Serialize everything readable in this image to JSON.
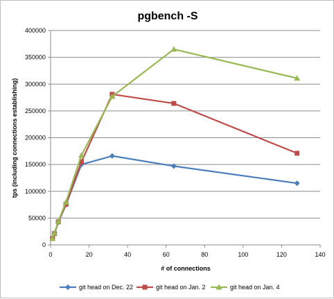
{
  "chart_data": {
    "type": "line",
    "title": "pgbench -S",
    "xlabel": "# of connections",
    "ylabel": "tps (including connections establishing)",
    "xlim": [
      0,
      140
    ],
    "ylim": [
      0,
      400000
    ],
    "xticks": [
      0,
      20,
      40,
      60,
      80,
      100,
      120,
      140
    ],
    "yticks": [
      0,
      50000,
      100000,
      150000,
      200000,
      250000,
      300000,
      350000,
      400000
    ],
    "grid": "horizontal",
    "legend_position": "bottom",
    "series": [
      {
        "name": "git head on Dec. 22",
        "color": "#4a7ebb",
        "marker": "diamond",
        "points": [
          [
            1,
            12000
          ],
          [
            2,
            21000
          ],
          [
            4,
            42000
          ],
          [
            8,
            75000
          ],
          [
            16,
            150000
          ],
          [
            32,
            166000
          ],
          [
            64,
            147000
          ],
          [
            128,
            115000
          ]
        ]
      },
      {
        "name": "git head on Jan. 2",
        "color": "#be4b48",
        "marker": "square",
        "points": [
          [
            1,
            12000
          ],
          [
            2,
            21000
          ],
          [
            4,
            43000
          ],
          [
            8,
            76000
          ],
          [
            16,
            155000
          ],
          [
            32,
            281000
          ],
          [
            64,
            264000
          ],
          [
            128,
            171000
          ]
        ]
      },
      {
        "name": "git head on Jan. 4",
        "color": "#98b954",
        "marker": "triangle",
        "points": [
          [
            1,
            12000
          ],
          [
            2,
            22000
          ],
          [
            4,
            44000
          ],
          [
            8,
            80000
          ],
          [
            16,
            167000
          ],
          [
            32,
            277000
          ],
          [
            64,
            365000
          ],
          [
            128,
            311000
          ]
        ]
      }
    ]
  }
}
